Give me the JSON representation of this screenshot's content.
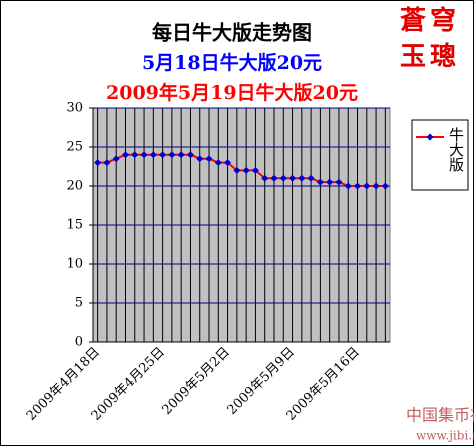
{
  "chart_data": {
    "type": "line",
    "title": "每日牛大版走势图",
    "subtitle": "5月18日牛大版20元",
    "subtitle2": "2009年5月19日牛大版20元",
    "annotations": [
      "蒼穹",
      "玉璁"
    ],
    "watermark": [
      "中国集币在线",
      "www.jibi.net"
    ],
    "categories": [
      "2009年4月18日",
      null,
      null,
      null,
      null,
      null,
      null,
      "2009年4月25日",
      null,
      null,
      null,
      null,
      null,
      null,
      "2009年5月2日",
      null,
      null,
      null,
      null,
      null,
      null,
      "2009年5月9日",
      null,
      null,
      null,
      null,
      null,
      null,
      "2009年5月16日",
      null,
      null,
      null
    ],
    "series": [
      {
        "name": "牛大版",
        "color": "#ff0000",
        "marker_color": "#0000cc",
        "values": [
          23,
          23,
          23.5,
          24,
          24,
          24,
          24,
          24,
          24,
          24,
          24,
          23.5,
          23.5,
          23,
          23,
          22,
          22,
          22,
          21,
          21,
          21,
          21,
          21,
          21,
          20.5,
          20.5,
          20.5,
          20,
          20,
          20,
          20,
          20
        ]
      }
    ],
    "ylim": [
      0,
      30
    ],
    "yticks": [
      0,
      5,
      10,
      15,
      20,
      25,
      30
    ],
    "grid": true,
    "grid_color": "#000080",
    "plot_background": "#c0c0c0",
    "legend": "right"
  }
}
